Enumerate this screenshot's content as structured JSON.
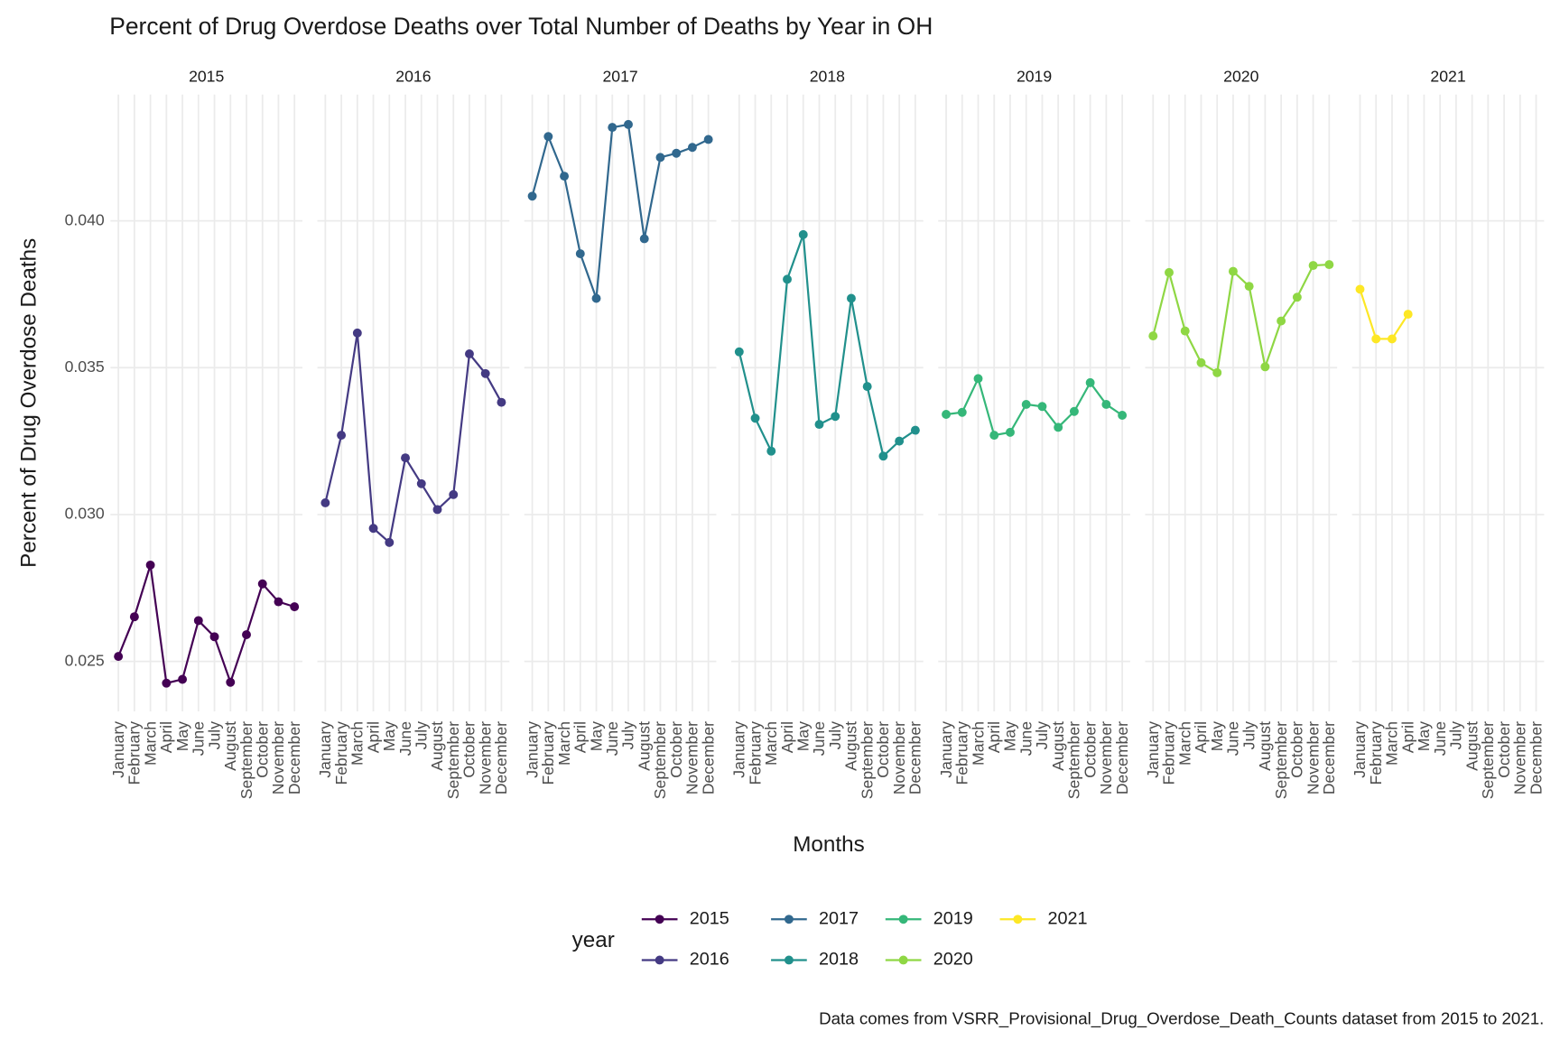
{
  "chart_data": {
    "type": "line",
    "title": "Percent of Drug Overdose Deaths over Total Number of Deaths by Year in OH",
    "x_label": "Months",
    "y_label": "Percent of Drug Overdose Deaths",
    "legend_title": "year",
    "caption": "Data comes from VSRR_Provisional_Drug_Overdose_Death_Counts dataset from 2015 to 2021.",
    "facet_by": "series",
    "grid": true,
    "legend_position": "bottom",
    "categories": [
      "January",
      "February",
      "March",
      "April",
      "May",
      "June",
      "July",
      "August",
      "September",
      "October",
      "November",
      "December"
    ],
    "ylim": [
      0.0233,
      0.0443
    ],
    "yticks": [
      0.025,
      {
        "value": 0.03,
        "label": "0.030"
      },
      0.035,
      {
        "value": 0.04,
        "label": "0.040"
      }
    ],
    "series": [
      {
        "name": "2015",
        "color": "#440154",
        "values": [
          0.02517,
          0.02652,
          0.02828,
          0.02426,
          0.02439,
          0.02639,
          0.02584,
          0.02429,
          0.02591,
          0.02764,
          0.02703,
          0.02686
        ]
      },
      {
        "name": "2016",
        "color": "#443a83",
        "values": [
          0.0304,
          0.0327,
          0.03618,
          0.02953,
          0.02905,
          0.03193,
          0.03105,
          0.03017,
          0.03068,
          0.03547,
          0.0348,
          0.03382
        ]
      },
      {
        "name": "2017",
        "color": "#31688e",
        "values": [
          0.04084,
          0.04287,
          0.04152,
          0.03888,
          0.03736,
          0.04318,
          0.04328,
          0.03939,
          0.04216,
          0.0423,
          0.0425,
          0.04277
        ]
      },
      {
        "name": "2018",
        "color": "#21908c",
        "values": [
          0.03554,
          0.03328,
          0.03216,
          0.03801,
          0.03953,
          0.03307,
          0.03334,
          0.03736,
          0.03436,
          0.03199,
          0.0325,
          0.03287
        ]
      },
      {
        "name": "2019",
        "color": "#35b779",
        "values": [
          0.03341,
          0.03348,
          0.03463,
          0.0327,
          0.0328,
          0.03375,
          0.03368,
          0.03297,
          0.03351,
          0.03449,
          0.03375,
          0.03338
        ]
      },
      {
        "name": "2020",
        "color": "#8fd744",
        "values": [
          0.03608,
          0.03824,
          0.03625,
          0.03517,
          0.03483,
          0.03828,
          0.03777,
          0.03503,
          0.03659,
          0.0374,
          0.03848,
          0.03851
        ]
      },
      {
        "name": "2021",
        "color": "#fde725",
        "values": [
          0.03767,
          0.03598,
          0.03598,
          0.03682,
          null,
          null,
          null,
          null,
          null,
          null,
          null,
          null
        ]
      }
    ]
  }
}
